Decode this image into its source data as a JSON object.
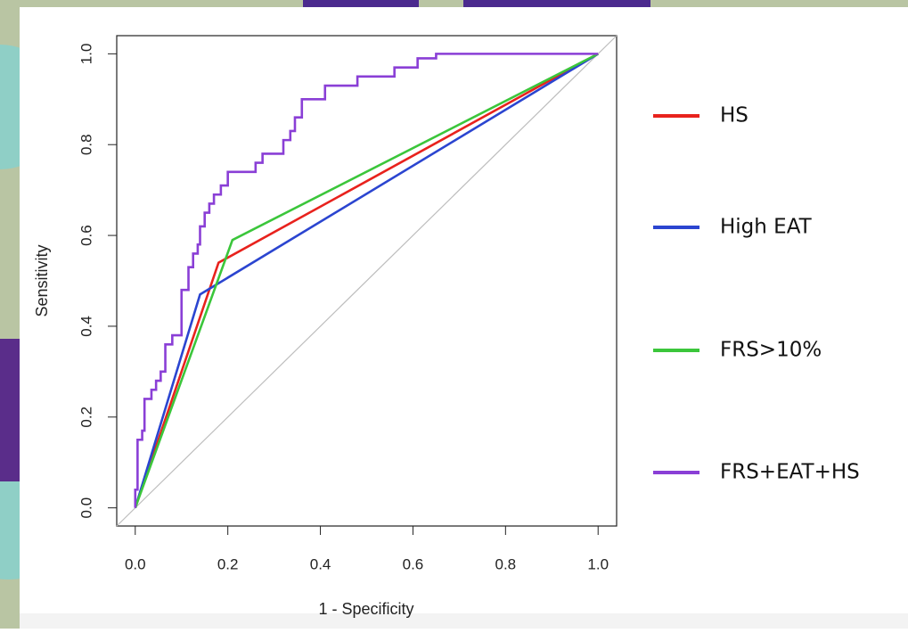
{
  "chart_data": {
    "type": "roc",
    "x_label": "1 - Specificity",
    "y_label": "Sensitivity",
    "xlim": [
      -0.04,
      1.04
    ],
    "ylim": [
      -0.04,
      1.04
    ],
    "xticks": [
      {
        "value": 0,
        "label": "0.0"
      },
      {
        "value": 0.2,
        "label": "0.2"
      },
      {
        "value": 0.4,
        "label": "0.4"
      },
      {
        "value": 0.6,
        "label": "0.6"
      },
      {
        "value": 0.8,
        "label": "0.8"
      },
      {
        "value": 1,
        "label": "1.0"
      }
    ],
    "yticks": [
      {
        "value": 0,
        "label": "0.0"
      },
      {
        "value": 0.2,
        "label": "0.2"
      },
      {
        "value": 0.4,
        "label": "0.4"
      },
      {
        "value": 0.6,
        "label": "0.6"
      },
      {
        "value": 0.8,
        "label": "0.8"
      },
      {
        "value": 1,
        "label": "1.0"
      }
    ],
    "diagonal": true,
    "legend": "right",
    "series": [
      {
        "name": "HS",
        "color": "#e8221d",
        "x": [
          0,
          0.18,
          1
        ],
        "values": [
          0,
          0.54,
          1
        ]
      },
      {
        "name": "High EAT",
        "color": "#2b45d0",
        "x": [
          0,
          0.14,
          1
        ],
        "values": [
          0,
          0.47,
          1
        ]
      },
      {
        "name": "FRS>10%",
        "color": "#3bc63b",
        "x": [
          0,
          0.21,
          1
        ],
        "values": [
          0,
          0.59,
          1
        ]
      },
      {
        "name": "FRS+EAT+HS",
        "color": "#8a3fd6",
        "x": [
          0,
          0,
          0.005,
          0.005,
          0.015,
          0.015,
          0.02,
          0.02,
          0.035,
          0.035,
          0.045,
          0.045,
          0.055,
          0.055,
          0.065,
          0.065,
          0.08,
          0.08,
          0.1,
          0.1,
          0.115,
          0.115,
          0.125,
          0.125,
          0.135,
          0.135,
          0.14,
          0.14,
          0.15,
          0.15,
          0.16,
          0.16,
          0.17,
          0.17,
          0.185,
          0.185,
          0.2,
          0.2,
          0.26,
          0.26,
          0.275,
          0.275,
          0.32,
          0.32,
          0.335,
          0.335,
          0.345,
          0.345,
          0.36,
          0.36,
          0.41,
          0.41,
          0.48,
          0.48,
          0.56,
          0.56,
          0.61,
          0.61,
          0.65,
          0.65,
          1
        ],
        "values": [
          0,
          0.04,
          0.04,
          0.15,
          0.15,
          0.17,
          0.17,
          0.24,
          0.24,
          0.26,
          0.26,
          0.28,
          0.28,
          0.3,
          0.3,
          0.36,
          0.36,
          0.38,
          0.38,
          0.48,
          0.48,
          0.53,
          0.53,
          0.56,
          0.56,
          0.58,
          0.58,
          0.62,
          0.62,
          0.65,
          0.65,
          0.67,
          0.67,
          0.69,
          0.69,
          0.71,
          0.71,
          0.74,
          0.74,
          0.76,
          0.76,
          0.78,
          0.78,
          0.81,
          0.81,
          0.83,
          0.83,
          0.86,
          0.86,
          0.9,
          0.9,
          0.93,
          0.93,
          0.95,
          0.95,
          0.97,
          0.97,
          0.99,
          0.99,
          1,
          1
        ]
      }
    ]
  }
}
